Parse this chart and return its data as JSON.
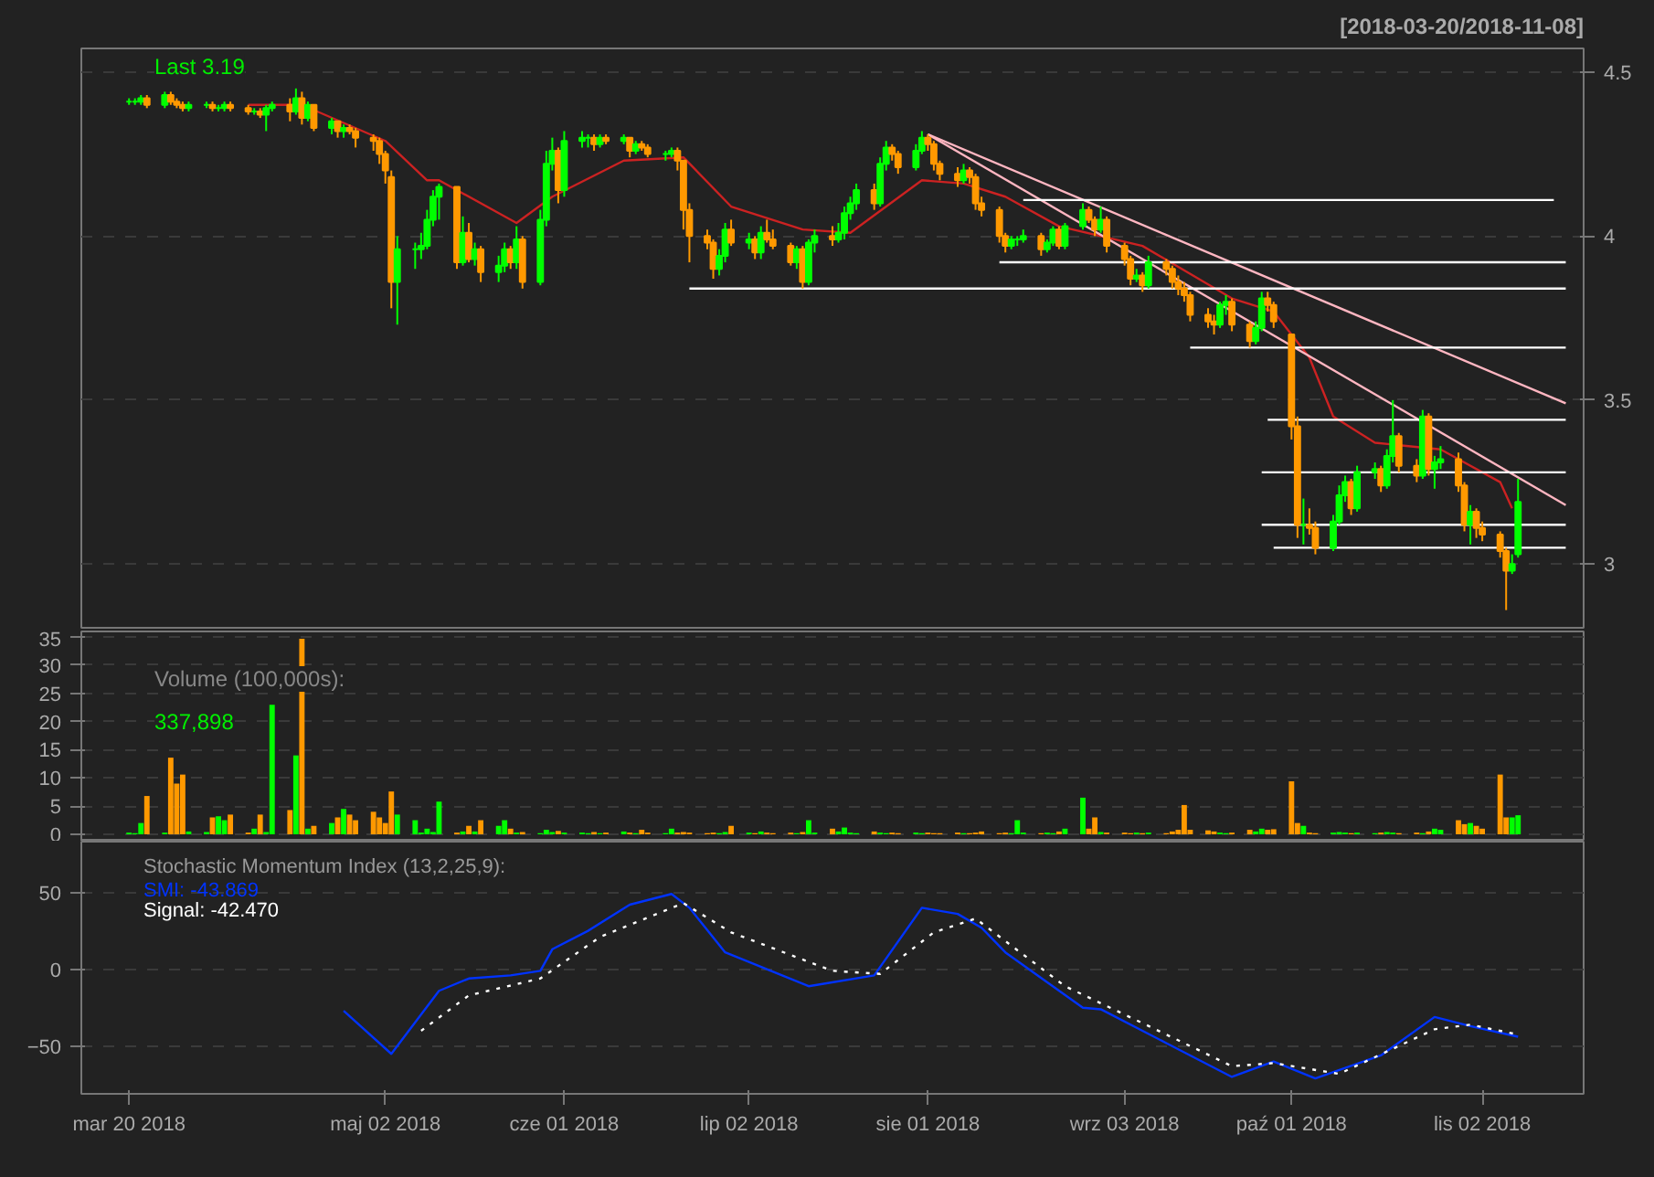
{
  "chart_data": [
    {
      "type": "candlestick",
      "title": "[2018-03-20/2018-11-08]",
      "annotations": [
        "Last 3.19"
      ],
      "xlim": [
        "2018-03-12",
        "2018-11-19"
      ],
      "ylim": [
        2.806,
        4.572
      ],
      "yticks": [
        3.0,
        3.5,
        4.0,
        4.5
      ],
      "tick_labels": "y",
      "grid": "y",
      "x": [
        "2018-03-20",
        "2018-03-21",
        "2018-03-22",
        "2018-03-23",
        "2018-03-26",
        "2018-03-27",
        "2018-03-28",
        "2018-03-29",
        "2018-03-30",
        "2018-04-02",
        "2018-04-03",
        "2018-04-04",
        "2018-04-05",
        "2018-04-06",
        "2018-04-09",
        "2018-04-10",
        "2018-04-11",
        "2018-04-12",
        "2018-04-13",
        "2018-04-16",
        "2018-04-17",
        "2018-04-18",
        "2018-04-19",
        "2018-04-20",
        "2018-04-23",
        "2018-04-24",
        "2018-04-25",
        "2018-04-26",
        "2018-04-27",
        "2018-04-30",
        "2018-05-01",
        "2018-05-02",
        "2018-05-03",
        "2018-05-04",
        "2018-05-07",
        "2018-05-08",
        "2018-05-09",
        "2018-05-10",
        "2018-05-11",
        "2018-05-14",
        "2018-05-15",
        "2018-05-16",
        "2018-05-17",
        "2018-05-18",
        "2018-05-21",
        "2018-05-22",
        "2018-05-23",
        "2018-05-24",
        "2018-05-25",
        "2018-05-28",
        "2018-05-29",
        "2018-05-30",
        "2018-05-31",
        "2018-06-01",
        "2018-06-04",
        "2018-06-05",
        "2018-06-06",
        "2018-06-07",
        "2018-06-08",
        "2018-06-11",
        "2018-06-12",
        "2018-06-13",
        "2018-06-14",
        "2018-06-15",
        "2018-06-18",
        "2018-06-19",
        "2018-06-20",
        "2018-06-21",
        "2018-06-22",
        "2018-06-25",
        "2018-06-26",
        "2018-06-27",
        "2018-06-28",
        "2018-06-29",
        "2018-07-02",
        "2018-07-03",
        "2018-07-04",
        "2018-07-05",
        "2018-07-06",
        "2018-07-09",
        "2018-07-10",
        "2018-07-11",
        "2018-07-12",
        "2018-07-13",
        "2018-07-16",
        "2018-07-17",
        "2018-07-18",
        "2018-07-19",
        "2018-07-20",
        "2018-07-23",
        "2018-07-24",
        "2018-07-25",
        "2018-07-26",
        "2018-07-27",
        "2018-07-30",
        "2018-07-31",
        "2018-08-01",
        "2018-08-02",
        "2018-08-03",
        "2018-08-06",
        "2018-08-07",
        "2018-08-08",
        "2018-08-09",
        "2018-08-10",
        "2018-08-13",
        "2018-08-14",
        "2018-08-15",
        "2018-08-16",
        "2018-08-17",
        "2018-08-20",
        "2018-08-21",
        "2018-08-22",
        "2018-08-23",
        "2018-08-24",
        "2018-08-27",
        "2018-08-28",
        "2018-08-29",
        "2018-08-30",
        "2018-08-31",
        "2018-09-03",
        "2018-09-04",
        "2018-09-05",
        "2018-09-06",
        "2018-09-07",
        "2018-09-10",
        "2018-09-11",
        "2018-09-12",
        "2018-09-13",
        "2018-09-14",
        "2018-09-17",
        "2018-09-18",
        "2018-09-19",
        "2018-09-20",
        "2018-09-21",
        "2018-09-24",
        "2018-09-25",
        "2018-09-26",
        "2018-09-27",
        "2018-09-28",
        "2018-10-01",
        "2018-10-02",
        "2018-10-03",
        "2018-10-04",
        "2018-10-05",
        "2018-10-08",
        "2018-10-09",
        "2018-10-10",
        "2018-10-11",
        "2018-10-12",
        "2018-10-15",
        "2018-10-16",
        "2018-10-17",
        "2018-10-18",
        "2018-10-19",
        "2018-10-22",
        "2018-10-23",
        "2018-10-24",
        "2018-10-25",
        "2018-10-26",
        "2018-10-29",
        "2018-10-30",
        "2018-10-31",
        "2018-11-01",
        "2018-11-02",
        "2018-11-05",
        "2018-11-06",
        "2018-11-07",
        "2018-11-08"
      ],
      "ohlc": [
        [
          4.41,
          4.42,
          4.4,
          4.41
        ],
        [
          4.41,
          4.42,
          4.4,
          4.41
        ],
        [
          4.41,
          4.43,
          4.4,
          4.42
        ],
        [
          4.42,
          4.43,
          4.39,
          4.4
        ],
        [
          4.4,
          4.44,
          4.39,
          4.43
        ],
        [
          4.43,
          4.44,
          4.4,
          4.41
        ],
        [
          4.41,
          4.42,
          4.39,
          4.4
        ],
        [
          4.4,
          4.41,
          4.38,
          4.39
        ],
        [
          4.39,
          4.41,
          4.38,
          4.4
        ],
        [
          4.4,
          4.41,
          4.39,
          4.4
        ],
        [
          4.4,
          4.41,
          4.38,
          4.39
        ],
        [
          4.39,
          4.4,
          4.38,
          4.39
        ],
        [
          4.39,
          4.41,
          4.38,
          4.4
        ],
        [
          4.4,
          4.41,
          4.38,
          4.39
        ],
        [
          4.39,
          4.4,
          4.37,
          4.38
        ],
        [
          4.38,
          4.39,
          4.37,
          4.38
        ],
        [
          4.38,
          4.39,
          4.36,
          4.37
        ],
        [
          4.37,
          4.4,
          4.32,
          4.39
        ],
        [
          4.39,
          4.41,
          4.38,
          4.4
        ],
        [
          4.4,
          4.42,
          4.35,
          4.38
        ],
        [
          4.38,
          4.45,
          4.37,
          4.42
        ],
        [
          4.42,
          4.44,
          4.34,
          4.36
        ],
        [
          4.36,
          4.41,
          4.35,
          4.4
        ],
        [
          4.4,
          4.4,
          4.32,
          4.33
        ],
        [
          4.33,
          4.36,
          4.31,
          4.35
        ],
        [
          4.35,
          4.35,
          4.3,
          4.32
        ],
        [
          4.32,
          4.34,
          4.3,
          4.33
        ],
        [
          4.33,
          4.34,
          4.31,
          4.32
        ],
        [
          4.32,
          4.33,
          4.27,
          4.3
        ],
        [
          4.3,
          4.31,
          4.26,
          4.29
        ],
        [
          4.29,
          4.3,
          4.22,
          4.25
        ],
        [
          4.25,
          4.26,
          4.16,
          4.2
        ],
        [
          4.18,
          4.2,
          3.78,
          3.86
        ],
        [
          3.86,
          4.0,
          3.73,
          3.96
        ],
        [
          3.96,
          3.98,
          3.9,
          3.96
        ],
        [
          3.96,
          4.01,
          3.93,
          3.97
        ],
        [
          3.97,
          4.08,
          3.96,
          4.05
        ],
        [
          4.05,
          4.14,
          4.03,
          4.12
        ],
        [
          4.12,
          4.16,
          4.05,
          4.15
        ],
        [
          4.15,
          4.15,
          3.9,
          3.92
        ],
        [
          3.92,
          4.06,
          3.91,
          4.01
        ],
        [
          4.01,
          4.04,
          3.92,
          3.93
        ],
        [
          3.93,
          3.98,
          3.91,
          3.96
        ],
        [
          3.96,
          3.97,
          3.86,
          3.89
        ],
        [
          3.89,
          3.94,
          3.86,
          3.91
        ],
        [
          3.91,
          3.98,
          3.89,
          3.96
        ],
        [
          3.96,
          3.97,
          3.9,
          3.92
        ],
        [
          3.92,
          4.03,
          3.9,
          3.99
        ],
        [
          3.99,
          4.0,
          3.84,
          3.86
        ],
        [
          3.86,
          4.08,
          3.85,
          4.05
        ],
        [
          4.05,
          4.26,
          4.03,
          4.22
        ],
        [
          4.22,
          4.3,
          4.2,
          4.26
        ],
        [
          4.26,
          4.27,
          4.1,
          4.14
        ],
        [
          4.14,
          4.32,
          4.12,
          4.29
        ],
        [
          4.29,
          4.32,
          4.27,
          4.3
        ],
        [
          4.3,
          4.31,
          4.27,
          4.3
        ],
        [
          4.3,
          4.31,
          4.26,
          4.28
        ],
        [
          4.28,
          4.31,
          4.27,
          4.3
        ],
        [
          4.3,
          4.31,
          4.28,
          4.29
        ],
        [
          4.29,
          4.31,
          4.28,
          4.3
        ],
        [
          4.3,
          4.3,
          4.24,
          4.26
        ],
        [
          4.26,
          4.29,
          4.25,
          4.28
        ],
        [
          4.28,
          4.29,
          4.26,
          4.27
        ],
        [
          4.27,
          4.28,
          4.24,
          4.25
        ],
        [
          4.25,
          4.26,
          4.23,
          4.25
        ],
        [
          4.25,
          4.27,
          4.24,
          4.26
        ],
        [
          4.26,
          4.27,
          4.2,
          4.23
        ],
        [
          4.23,
          4.23,
          4.02,
          4.08
        ],
        [
          4.08,
          4.1,
          3.92,
          4.0
        ],
        [
          4.0,
          4.02,
          3.96,
          3.98
        ],
        [
          3.98,
          3.99,
          3.87,
          3.9
        ],
        [
          3.9,
          3.96,
          3.88,
          3.94
        ],
        [
          3.94,
          4.04,
          3.92,
          4.02
        ],
        [
          4.02,
          4.05,
          3.97,
          3.98
        ],
        [
          3.98,
          4.01,
          3.96,
          3.99
        ],
        [
          3.99,
          4.0,
          3.93,
          3.95
        ],
        [
          3.95,
          4.03,
          3.93,
          4.01
        ],
        [
          4.01,
          4.05,
          3.98,
          3.99
        ],
        [
          3.99,
          4.02,
          3.96,
          3.97
        ],
        [
          3.97,
          3.98,
          3.91,
          3.92
        ],
        [
          3.92,
          3.97,
          3.9,
          3.96
        ],
        [
          3.96,
          3.97,
          3.84,
          3.86
        ],
        [
          3.86,
          3.99,
          3.85,
          3.98
        ],
        [
          3.98,
          4.02,
          3.95,
          4.0
        ],
        [
          4.0,
          4.03,
          3.97,
          3.99
        ],
        [
          3.99,
          4.04,
          3.98,
          4.01
        ],
        [
          4.01,
          4.09,
          3.99,
          4.07
        ],
        [
          4.07,
          4.12,
          4.05,
          4.1
        ],
        [
          4.1,
          4.16,
          4.08,
          4.14
        ],
        [
          4.14,
          4.16,
          4.08,
          4.1
        ],
        [
          4.1,
          4.24,
          4.09,
          4.22
        ],
        [
          4.22,
          4.29,
          4.2,
          4.27
        ],
        [
          4.27,
          4.28,
          4.23,
          4.25
        ],
        [
          4.25,
          4.26,
          4.19,
          4.21
        ],
        [
          4.21,
          4.28,
          4.2,
          4.26
        ],
        [
          4.26,
          4.32,
          4.25,
          4.3
        ],
        [
          4.3,
          4.31,
          4.26,
          4.28
        ],
        [
          4.28,
          4.29,
          4.2,
          4.22
        ],
        [
          4.22,
          4.23,
          4.17,
          4.19
        ],
        [
          4.19,
          4.21,
          4.15,
          4.17
        ],
        [
          4.17,
          4.22,
          4.16,
          4.2
        ],
        [
          4.2,
          4.21,
          4.16,
          4.18
        ],
        [
          4.18,
          4.19,
          4.08,
          4.1
        ],
        [
          4.1,
          4.12,
          4.06,
          4.08
        ],
        [
          4.08,
          4.09,
          3.98,
          4.0
        ],
        [
          4.0,
          4.01,
          3.95,
          3.97
        ],
        [
          3.97,
          4.0,
          3.96,
          3.99
        ],
        [
          3.99,
          4.0,
          3.97,
          3.99
        ],
        [
          3.99,
          4.02,
          3.98,
          4.0
        ],
        [
          4.0,
          4.01,
          3.94,
          3.96
        ],
        [
          3.96,
          3.99,
          3.95,
          3.98
        ],
        [
          3.98,
          4.03,
          3.97,
          4.02
        ],
        [
          4.02,
          4.03,
          3.96,
          3.97
        ],
        [
          3.97,
          4.04,
          3.96,
          4.03
        ],
        [
          4.03,
          4.1,
          4.02,
          4.08
        ],
        [
          4.08,
          4.09,
          4.04,
          4.05
        ],
        [
          4.05,
          4.06,
          4.0,
          4.02
        ],
        [
          4.02,
          4.09,
          4.01,
          4.05
        ],
        [
          4.05,
          4.06,
          3.95,
          3.97
        ],
        [
          3.97,
          3.98,
          3.91,
          3.93
        ],
        [
          3.93,
          3.94,
          3.85,
          3.87
        ],
        [
          3.87,
          3.9,
          3.86,
          3.88
        ],
        [
          3.88,
          3.89,
          3.83,
          3.85
        ],
        [
          3.85,
          3.94,
          3.84,
          3.92
        ],
        [
          3.92,
          3.93,
          3.88,
          3.9
        ],
        [
          3.9,
          3.91,
          3.84,
          3.86
        ],
        [
          3.86,
          3.88,
          3.82,
          3.84
        ],
        [
          3.84,
          3.86,
          3.8,
          3.82
        ],
        [
          3.82,
          3.83,
          3.74,
          3.76
        ],
        [
          3.76,
          3.78,
          3.72,
          3.74
        ],
        [
          3.74,
          3.76,
          3.7,
          3.73
        ],
        [
          3.73,
          3.8,
          3.72,
          3.79
        ],
        [
          3.79,
          3.82,
          3.76,
          3.8
        ],
        [
          3.8,
          3.81,
          3.71,
          3.73
        ],
        [
          3.73,
          3.74,
          3.66,
          3.68
        ],
        [
          3.68,
          3.74,
          3.67,
          3.72
        ],
        [
          3.72,
          3.83,
          3.71,
          3.81
        ],
        [
          3.81,
          3.83,
          3.77,
          3.79
        ],
        [
          3.79,
          3.8,
          3.72,
          3.74
        ],
        [
          3.7,
          3.7,
          3.38,
          3.42
        ],
        [
          3.42,
          3.45,
          3.08,
          3.12
        ],
        [
          3.12,
          3.2,
          3.06,
          3.12
        ],
        [
          3.12,
          3.17,
          3.09,
          3.11
        ],
        [
          3.11,
          3.13,
          3.03,
          3.05
        ],
        [
          3.05,
          3.15,
          3.04,
          3.13
        ],
        [
          3.13,
          3.24,
          3.12,
          3.21
        ],
        [
          3.21,
          3.27,
          3.19,
          3.25
        ],
        [
          3.25,
          3.26,
          3.15,
          3.17
        ],
        [
          3.17,
          3.3,
          3.16,
          3.28
        ],
        [
          3.28,
          3.31,
          3.26,
          3.29
        ],
        [
          3.29,
          3.3,
          3.22,
          3.24
        ],
        [
          3.24,
          3.35,
          3.23,
          3.33
        ],
        [
          3.33,
          3.5,
          3.31,
          3.39
        ],
        [
          3.39,
          3.4,
          3.28,
          3.3
        ],
        [
          3.3,
          3.32,
          3.25,
          3.27
        ],
        [
          3.27,
          3.47,
          3.26,
          3.45
        ],
        [
          3.45,
          3.46,
          3.27,
          3.29
        ],
        [
          3.29,
          3.33,
          3.23,
          3.31
        ],
        [
          3.31,
          3.36,
          3.29,
          3.32
        ],
        [
          3.32,
          3.34,
          3.22,
          3.24
        ],
        [
          3.24,
          3.25,
          3.1,
          3.12
        ],
        [
          3.12,
          3.18,
          3.06,
          3.16
        ],
        [
          3.16,
          3.17,
          3.08,
          3.11
        ],
        [
          3.11,
          3.13,
          3.07,
          3.09
        ],
        [
          3.09,
          3.1,
          3.02,
          3.04
        ],
        [
          3.04,
          3.05,
          2.86,
          2.98
        ],
        [
          2.98,
          3.03,
          2.97,
          3.0
        ],
        [
          3.03,
          3.26,
          3.02,
          3.19
        ]
      ],
      "colors": [
        "#00ff00",
        "#00ff00",
        "#00ff00",
        "#ff9900",
        "#00ff00",
        "#ff9900",
        "#ff9900",
        "#ff9900",
        "#00ff00",
        "#00ff00",
        "#ff9900",
        "#00ff00",
        "#00ff00",
        "#ff9900",
        "#ff9900",
        "#00ff00",
        "#ff9900",
        "#00ff00",
        "#00ff00",
        "#ff9900",
        "#00ff00",
        "#ff9900",
        "#00ff00",
        "#ff9900",
        "#00ff00",
        "#ff9900",
        "#00ff00",
        "#ff9900",
        "#ff9900",
        "#ff9900",
        "#ff9900",
        "#ff9900",
        "#ff9900",
        "#00ff00",
        "#00ff00",
        "#00ff00",
        "#00ff00",
        "#00ff00",
        "#00ff00",
        "#ff9900",
        "#00ff00",
        "#ff9900",
        "#00ff00",
        "#ff9900",
        "#00ff00",
        "#00ff00",
        "#ff9900",
        "#00ff00",
        "#ff9900",
        "#00ff00",
        "#00ff00",
        "#00ff00",
        "#ff9900",
        "#00ff00",
        "#00ff00",
        "#00ff00",
        "#ff9900",
        "#00ff00",
        "#ff9900",
        "#00ff00",
        "#ff9900",
        "#00ff00",
        "#ff9900",
        "#ff9900",
        "#00ff00",
        "#00ff00",
        "#ff9900",
        "#ff9900",
        "#ff9900",
        "#ff9900",
        "#ff9900",
        "#00ff00",
        "#00ff00",
        "#ff9900",
        "#00ff00",
        "#ff9900",
        "#00ff00",
        "#ff9900",
        "#ff9900",
        "#ff9900",
        "#00ff00",
        "#ff9900",
        "#00ff00",
        "#00ff00",
        "#ff9900",
        "#00ff00",
        "#00ff00",
        "#00ff00",
        "#00ff00",
        "#ff9900",
        "#00ff00",
        "#00ff00",
        "#ff9900",
        "#ff9900",
        "#00ff00",
        "#00ff00",
        "#ff9900",
        "#ff9900",
        "#ff9900",
        "#ff9900",
        "#00ff00",
        "#ff9900",
        "#ff9900",
        "#ff9900",
        "#ff9900",
        "#ff9900",
        "#00ff00",
        "#00ff00",
        "#00ff00",
        "#ff9900",
        "#00ff00",
        "#00ff00",
        "#ff9900",
        "#00ff00",
        "#00ff00",
        "#ff9900",
        "#ff9900",
        "#00ff00",
        "#ff9900",
        "#ff9900",
        "#ff9900",
        "#00ff00",
        "#ff9900",
        "#00ff00",
        "#ff9900",
        "#ff9900",
        "#ff9900",
        "#ff9900",
        "#ff9900",
        "#ff9900",
        "#ff9900",
        "#00ff00",
        "#00ff00",
        "#ff9900",
        "#ff9900",
        "#00ff00",
        "#00ff00",
        "#ff9900",
        "#ff9900",
        "#ff9900",
        "#ff9900",
        "#00ff00",
        "#ff9900",
        "#ff9900",
        "#00ff00",
        "#00ff00",
        "#00ff00",
        "#ff9900",
        "#00ff00",
        "#00ff00",
        "#ff9900",
        "#00ff00",
        "#00ff00",
        "#ff9900",
        "#ff9900",
        "#00ff00",
        "#ff9900",
        "#00ff00",
        "#00ff00",
        "#ff9900",
        "#ff9900",
        "#00ff00",
        "#ff9900",
        "#ff9900",
        "#ff9900",
        "#ff9900",
        "#00ff00",
        "#00ff00"
      ],
      "series": [
        {
          "type": "line",
          "color": "#cc2222",
          "x": [
            "2018-04-09",
            "2018-04-18",
            "2018-05-02",
            "2018-05-09",
            "2018-05-11",
            "2018-05-24",
            "2018-05-30",
            "2018-06-11",
            "2018-06-21",
            "2018-06-29",
            "2018-07-11",
            "2018-07-19",
            "2018-07-31",
            "2018-08-07",
            "2018-08-14",
            "2018-08-23",
            "2018-09-06",
            "2018-09-21",
            "2018-09-28",
            "2018-10-04",
            "2018-10-08",
            "2018-10-15",
            "2018-10-26",
            "2018-11-05",
            "2018-11-07"
          ],
          "values": [
            4.4,
            4.4,
            4.29,
            4.17,
            4.17,
            4.04,
            4.12,
            4.23,
            4.24,
            4.09,
            4.02,
            4.01,
            4.17,
            4.16,
            4.12,
            4.03,
            3.97,
            3.81,
            3.77,
            3.63,
            3.45,
            3.37,
            3.35,
            3.25,
            3.17
          ]
        },
        {
          "type": "line",
          "color": "#ffb6c1",
          "x": [
            "2018-08-01",
            "2018-11-16"
          ],
          "values": [
            4.31,
            3.49
          ]
        },
        {
          "type": "line",
          "color": "#ffb6c1",
          "x": [
            "2018-08-01",
            "2018-11-16"
          ],
          "values": [
            4.31,
            3.18
          ]
        },
        {
          "type": "line",
          "color": "#ffffff",
          "x": [
            "2018-08-17",
            "2018-11-14"
          ],
          "values": [
            4.11,
            4.11
          ]
        },
        {
          "type": "line",
          "color": "#ffffff",
          "x": [
            "2018-08-13",
            "2018-11-16"
          ],
          "values": [
            3.92,
            3.92
          ]
        },
        {
          "type": "line",
          "color": "#ffffff",
          "x": [
            "2018-06-22",
            "2018-11-16"
          ],
          "values": [
            3.84,
            3.84
          ]
        },
        {
          "type": "line",
          "color": "#ffffff",
          "x": [
            "2018-09-14",
            "2018-11-16"
          ],
          "values": [
            3.66,
            3.66
          ]
        },
        {
          "type": "line",
          "color": "#ffffff",
          "x": [
            "2018-09-27",
            "2018-11-16"
          ],
          "values": [
            3.44,
            3.44
          ]
        },
        {
          "type": "line",
          "color": "#ffffff",
          "x": [
            "2018-09-26",
            "2018-11-16"
          ],
          "values": [
            3.28,
            3.28
          ]
        },
        {
          "type": "line",
          "color": "#ffffff",
          "x": [
            "2018-09-26",
            "2018-11-16"
          ],
          "values": [
            3.12,
            3.12
          ]
        },
        {
          "type": "line",
          "color": "#ffffff",
          "x": [
            "2018-09-28",
            "2018-11-16"
          ],
          "values": [
            3.05,
            3.05
          ]
        }
      ]
    },
    {
      "type": "bar",
      "annotations": [
        "Volume (100,000s):",
        "337,898"
      ],
      "xlim": [
        "2018-03-12",
        "2018-11-19"
      ],
      "ylim": [
        -1.3,
        36
      ],
      "yticks": [
        0,
        5,
        10,
        15,
        20,
        25,
        30,
        35
      ],
      "tick_labels": "y",
      "grid": "y",
      "x": [
        "2018-03-20",
        "2018-03-21",
        "2018-03-22",
        "2018-03-23",
        "2018-03-26",
        "2018-03-27",
        "2018-03-28",
        "2018-03-29",
        "2018-03-30",
        "2018-04-02",
        "2018-04-03",
        "2018-04-04",
        "2018-04-05",
        "2018-04-06",
        "2018-04-09",
        "2018-04-10",
        "2018-04-11",
        "2018-04-12",
        "2018-04-13",
        "2018-04-16",
        "2018-04-17",
        "2018-04-18",
        "2018-04-19",
        "2018-04-20",
        "2018-04-23",
        "2018-04-24",
        "2018-04-25",
        "2018-04-26",
        "2018-04-27",
        "2018-04-30",
        "2018-05-01",
        "2018-05-02",
        "2018-05-03",
        "2018-05-04",
        "2018-05-07",
        "2018-05-08",
        "2018-05-09",
        "2018-05-10",
        "2018-05-11",
        "2018-05-14",
        "2018-05-15",
        "2018-05-16",
        "2018-05-17",
        "2018-05-18",
        "2018-05-21",
        "2018-05-22",
        "2018-05-23",
        "2018-05-24",
        "2018-05-25",
        "2018-05-28",
        "2018-05-29",
        "2018-05-30",
        "2018-05-31",
        "2018-06-01",
        "2018-06-04",
        "2018-06-05",
        "2018-06-06",
        "2018-06-07",
        "2018-06-08",
        "2018-06-11",
        "2018-06-12",
        "2018-06-13",
        "2018-06-14",
        "2018-06-15",
        "2018-06-18",
        "2018-06-19",
        "2018-06-20",
        "2018-06-21",
        "2018-06-22",
        "2018-06-25",
        "2018-06-26",
        "2018-06-27",
        "2018-06-28",
        "2018-06-29",
        "2018-07-02",
        "2018-07-03",
        "2018-07-04",
        "2018-07-05",
        "2018-07-06",
        "2018-07-09",
        "2018-07-10",
        "2018-07-11",
        "2018-07-12",
        "2018-07-13",
        "2018-07-16",
        "2018-07-17",
        "2018-07-18",
        "2018-07-19",
        "2018-07-20",
        "2018-07-23",
        "2018-07-24",
        "2018-07-25",
        "2018-07-26",
        "2018-07-27",
        "2018-07-30",
        "2018-07-31",
        "2018-08-01",
        "2018-08-02",
        "2018-08-03",
        "2018-08-06",
        "2018-08-07",
        "2018-08-08",
        "2018-08-09",
        "2018-08-10",
        "2018-08-13",
        "2018-08-14",
        "2018-08-15",
        "2018-08-16",
        "2018-08-17",
        "2018-08-20",
        "2018-08-21",
        "2018-08-22",
        "2018-08-23",
        "2018-08-24",
        "2018-08-27",
        "2018-08-28",
        "2018-08-29",
        "2018-08-30",
        "2018-08-31",
        "2018-09-03",
        "2018-09-04",
        "2018-09-05",
        "2018-09-06",
        "2018-09-07",
        "2018-09-10",
        "2018-09-11",
        "2018-09-12",
        "2018-09-13",
        "2018-09-14",
        "2018-09-17",
        "2018-09-18",
        "2018-09-19",
        "2018-09-20",
        "2018-09-21",
        "2018-09-24",
        "2018-09-25",
        "2018-09-26",
        "2018-09-27",
        "2018-09-28",
        "2018-10-01",
        "2018-10-02",
        "2018-10-03",
        "2018-10-04",
        "2018-10-05",
        "2018-10-08",
        "2018-10-09",
        "2018-10-10",
        "2018-10-11",
        "2018-10-12",
        "2018-10-15",
        "2018-10-16",
        "2018-10-17",
        "2018-10-18",
        "2018-10-19",
        "2018-10-22",
        "2018-10-23",
        "2018-10-24",
        "2018-10-25",
        "2018-10-26",
        "2018-10-29",
        "2018-10-30",
        "2018-10-31",
        "2018-11-01",
        "2018-11-02",
        "2018-11-05",
        "2018-11-06",
        "2018-11-07",
        "2018-11-08"
      ],
      "values": [
        0.3,
        0.2,
        2,
        6.8,
        0.3,
        13.6,
        9,
        10.6,
        0.5,
        0.4,
        3,
        3.2,
        2.5,
        3.5,
        0.3,
        1,
        3.5,
        0.4,
        23,
        4.3,
        14,
        34.7,
        1,
        1.5,
        2,
        3,
        4.5,
        3.5,
        2.5,
        4,
        3,
        2,
        7.6,
        3.5,
        2.5,
        0.3,
        1,
        0.4,
        5.8,
        0.3,
        0.5,
        1.5,
        0.5,
        2.5,
        1.5,
        2.5,
        1,
        0.3,
        0.4,
        0.2,
        0.8,
        0.4,
        0.6,
        0.3,
        0.3,
        0.2,
        0.4,
        0.2,
        0.3,
        0.5,
        0.3,
        0.2,
        0.8,
        0.3,
        0.2,
        1,
        0.3,
        0.4,
        0.3,
        0.2,
        0.3,
        0.2,
        0.4,
        1.5,
        0.3,
        0.2,
        0.5,
        0.3,
        0.2,
        0.3,
        0.2,
        0.4,
        2.5,
        0.3,
        1,
        0.5,
        1.2,
        0.3,
        0.2,
        0.5,
        0.3,
        0.2,
        0.3,
        0.2,
        0.3,
        0.2,
        0.3,
        0.2,
        0.2,
        0.3,
        0.2,
        0.2,
        0.3,
        0.5,
        0.2,
        0.3,
        0.2,
        2.5,
        0.3,
        0.2,
        0.3,
        0.2,
        0.5,
        1,
        6.5,
        1,
        3,
        0.4,
        0.3,
        0.3,
        0.2,
        0.3,
        0.2,
        0.3,
        0.2,
        0.5,
        0.8,
        5.2,
        0.8,
        0.7,
        0.5,
        0.3,
        0.2,
        0.3,
        0.8,
        0.5,
        1,
        0.8,
        0.9,
        9.4,
        2,
        1.5,
        0.3,
        0.2,
        0.3,
        0.4,
        0.3,
        0.2,
        0.3,
        0.2,
        0.3,
        0.4,
        0.3,
        0.2,
        0.3,
        0.2,
        0.5,
        1,
        0.8,
        2.5,
        1.8,
        2,
        1.5,
        1,
        10.6,
        3,
        3,
        3.38
      ],
      "colors": [
        "#00ff00",
        "#00ff00",
        "#00ff00",
        "#ff9900",
        "#00ff00",
        "#ff9900",
        "#ff9900",
        "#ff9900",
        "#00ff00",
        "#00ff00",
        "#ff9900",
        "#00ff00",
        "#00ff00",
        "#ff9900",
        "#ff9900",
        "#00ff00",
        "#ff9900",
        "#00ff00",
        "#00ff00",
        "#ff9900",
        "#00ff00",
        "#ff9900",
        "#00ff00",
        "#ff9900",
        "#00ff00",
        "#ff9900",
        "#00ff00",
        "#ff9900",
        "#ff9900",
        "#ff9900",
        "#ff9900",
        "#ff9900",
        "#ff9900",
        "#00ff00",
        "#00ff00",
        "#00ff00",
        "#00ff00",
        "#00ff00",
        "#00ff00",
        "#ff9900",
        "#00ff00",
        "#ff9900",
        "#00ff00",
        "#ff9900",
        "#00ff00",
        "#00ff00",
        "#ff9900",
        "#00ff00",
        "#ff9900",
        "#00ff00",
        "#00ff00",
        "#00ff00",
        "#ff9900",
        "#00ff00",
        "#00ff00",
        "#00ff00",
        "#ff9900",
        "#00ff00",
        "#ff9900",
        "#00ff00",
        "#ff9900",
        "#00ff00",
        "#ff9900",
        "#ff9900",
        "#00ff00",
        "#00ff00",
        "#ff9900",
        "#ff9900",
        "#ff9900",
        "#ff9900",
        "#ff9900",
        "#00ff00",
        "#00ff00",
        "#ff9900",
        "#00ff00",
        "#ff9900",
        "#00ff00",
        "#ff9900",
        "#ff9900",
        "#ff9900",
        "#00ff00",
        "#ff9900",
        "#00ff00",
        "#00ff00",
        "#ff9900",
        "#00ff00",
        "#00ff00",
        "#00ff00",
        "#00ff00",
        "#ff9900",
        "#00ff00",
        "#00ff00",
        "#ff9900",
        "#ff9900",
        "#00ff00",
        "#00ff00",
        "#ff9900",
        "#ff9900",
        "#ff9900",
        "#ff9900",
        "#00ff00",
        "#ff9900",
        "#ff9900",
        "#ff9900",
        "#ff9900",
        "#ff9900",
        "#00ff00",
        "#00ff00",
        "#00ff00",
        "#ff9900",
        "#00ff00",
        "#00ff00",
        "#ff9900",
        "#00ff00",
        "#00ff00",
        "#ff9900",
        "#ff9900",
        "#00ff00",
        "#ff9900",
        "#ff9900",
        "#ff9900",
        "#00ff00",
        "#ff9900",
        "#00ff00",
        "#ff9900",
        "#ff9900",
        "#ff9900",
        "#ff9900",
        "#ff9900",
        "#ff9900",
        "#ff9900",
        "#00ff00",
        "#00ff00",
        "#ff9900",
        "#ff9900",
        "#00ff00",
        "#00ff00",
        "#ff9900",
        "#ff9900",
        "#ff9900",
        "#ff9900",
        "#00ff00",
        "#ff9900",
        "#ff9900",
        "#00ff00",
        "#00ff00",
        "#00ff00",
        "#ff9900",
        "#00ff00",
        "#00ff00",
        "#ff9900",
        "#00ff00",
        "#00ff00",
        "#ff9900",
        "#ff9900",
        "#00ff00",
        "#ff9900",
        "#00ff00",
        "#00ff00",
        "#ff9900",
        "#ff9900",
        "#00ff00",
        "#ff9900",
        "#ff9900",
        "#ff9900",
        "#ff9900",
        "#00ff00",
        "#00ff00"
      ]
    },
    {
      "type": "line",
      "title": "Stochastic Momentum Index (13,2,25,9):",
      "legend": "top left",
      "xlim": [
        "2018-03-12",
        "2018-11-19"
      ],
      "ylim": [
        -81,
        83
      ],
      "yticks": [
        -50,
        0,
        50
      ],
      "grid": "y",
      "xticks": [
        {
          "value": "2018-03-20",
          "label": "mar 20 2018"
        },
        {
          "value": "2018-05-02",
          "label": "maj 02 2018"
        },
        {
          "value": "2018-06-01",
          "label": "cze 01 2018"
        },
        {
          "value": "2018-07-02",
          "label": "lip 02 2018"
        },
        {
          "value": "2018-08-01",
          "label": "sie 01 2018"
        },
        {
          "value": "2018-09-03",
          "label": "wrz 03 2018"
        },
        {
          "value": "2018-10-01",
          "label": "paź 01 2018"
        },
        {
          "value": "2018-11-02",
          "label": "lis 02 2018"
        }
      ],
      "series": [
        {
          "name": "SMI: -43.869",
          "color": "#0033ff",
          "x": [
            "2018-04-25",
            "2018-05-03",
            "2018-05-11",
            "2018-05-16",
            "2018-05-23",
            "2018-05-28",
            "2018-05-30",
            "2018-06-05",
            "2018-06-12",
            "2018-06-19",
            "2018-06-22",
            "2018-06-28",
            "2018-07-12",
            "2018-07-23",
            "2018-07-31",
            "2018-08-06",
            "2018-08-10",
            "2018-08-14",
            "2018-08-27",
            "2018-08-30",
            "2018-09-10",
            "2018-09-21",
            "2018-09-28",
            "2018-10-05",
            "2018-10-16",
            "2018-10-25",
            "2018-10-31",
            "2018-11-08"
          ],
          "values": [
            -27,
            -55,
            -14,
            -6,
            -4,
            -1,
            13,
            25,
            42,
            49,
            40,
            11,
            -11,
            -4,
            40,
            36,
            27,
            11,
            -25,
            -26,
            -48,
            -70,
            -60,
            -71,
            -56,
            -31,
            -37,
            -43.869
          ]
        },
        {
          "name": "Signal: -42.470",
          "color": "#ffffff",
          "line_style": "dotted",
          "x": [
            "2018-05-08",
            "2018-05-16",
            "2018-05-28",
            "2018-06-07",
            "2018-06-21",
            "2018-06-29",
            "2018-07-16",
            "2018-07-24",
            "2018-08-02",
            "2018-08-09",
            "2018-08-24",
            "2018-09-06",
            "2018-09-21",
            "2018-09-28",
            "2018-10-09",
            "2018-10-25",
            "2018-10-31",
            "2018-11-08"
          ],
          "values": [
            -40,
            -17,
            -6,
            21,
            43,
            24,
            -1,
            -3,
            24,
            33,
            -11,
            -35,
            -63,
            -61,
            -68,
            -39,
            -36,
            -42.47
          ]
        }
      ]
    }
  ]
}
